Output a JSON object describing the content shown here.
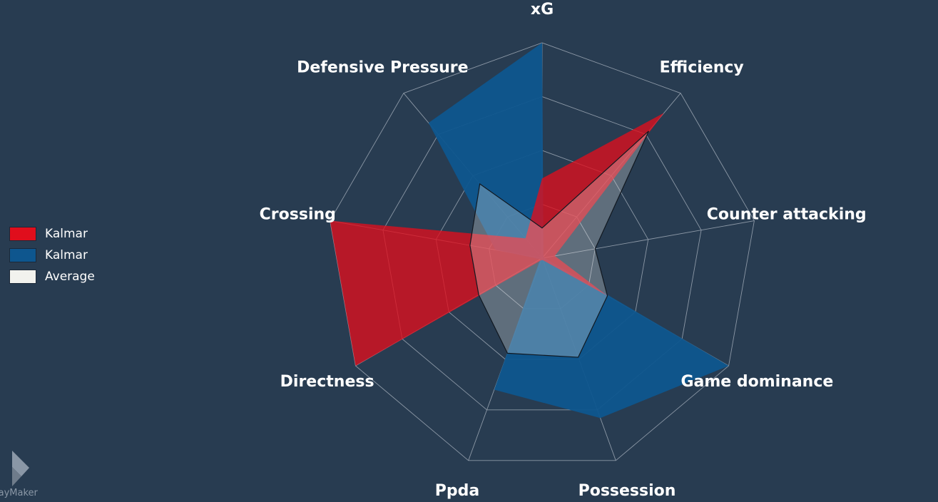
{
  "chart_data": {
    "type": "radar",
    "categories": [
      "xG",
      "Efficiency",
      "Counter attacking",
      "Game dominance",
      "Possession",
      "Ppda",
      "Directness",
      "Crossing",
      "Defensive Pressure"
    ],
    "series": [
      {
        "name": "Kalmar",
        "color": "#e00e1c",
        "values": [
          0.37,
          0.88,
          0.06,
          0.35,
          0.01,
          0.01,
          1.0,
          1.0,
          0.12
        ]
      },
      {
        "name": "Kalmar",
        "color": "#0e568e",
        "values": [
          1.0,
          0.01,
          0.01,
          1.0,
          0.79,
          0.65,
          0.01,
          0.22,
          0.82
        ]
      },
      {
        "name": "Average",
        "color": "#f2f2ee",
        "values": [
          0.14,
          0.77,
          0.25,
          0.35,
          0.49,
          0.47,
          0.34,
          0.34,
          0.45
        ]
      }
    ],
    "range": [
      0,
      1
    ],
    "grid_levels": 4,
    "legend_position": "left"
  },
  "branding": {
    "logo_text": "layMaker",
    "logo_icon": "playmaker-logo-icon"
  }
}
